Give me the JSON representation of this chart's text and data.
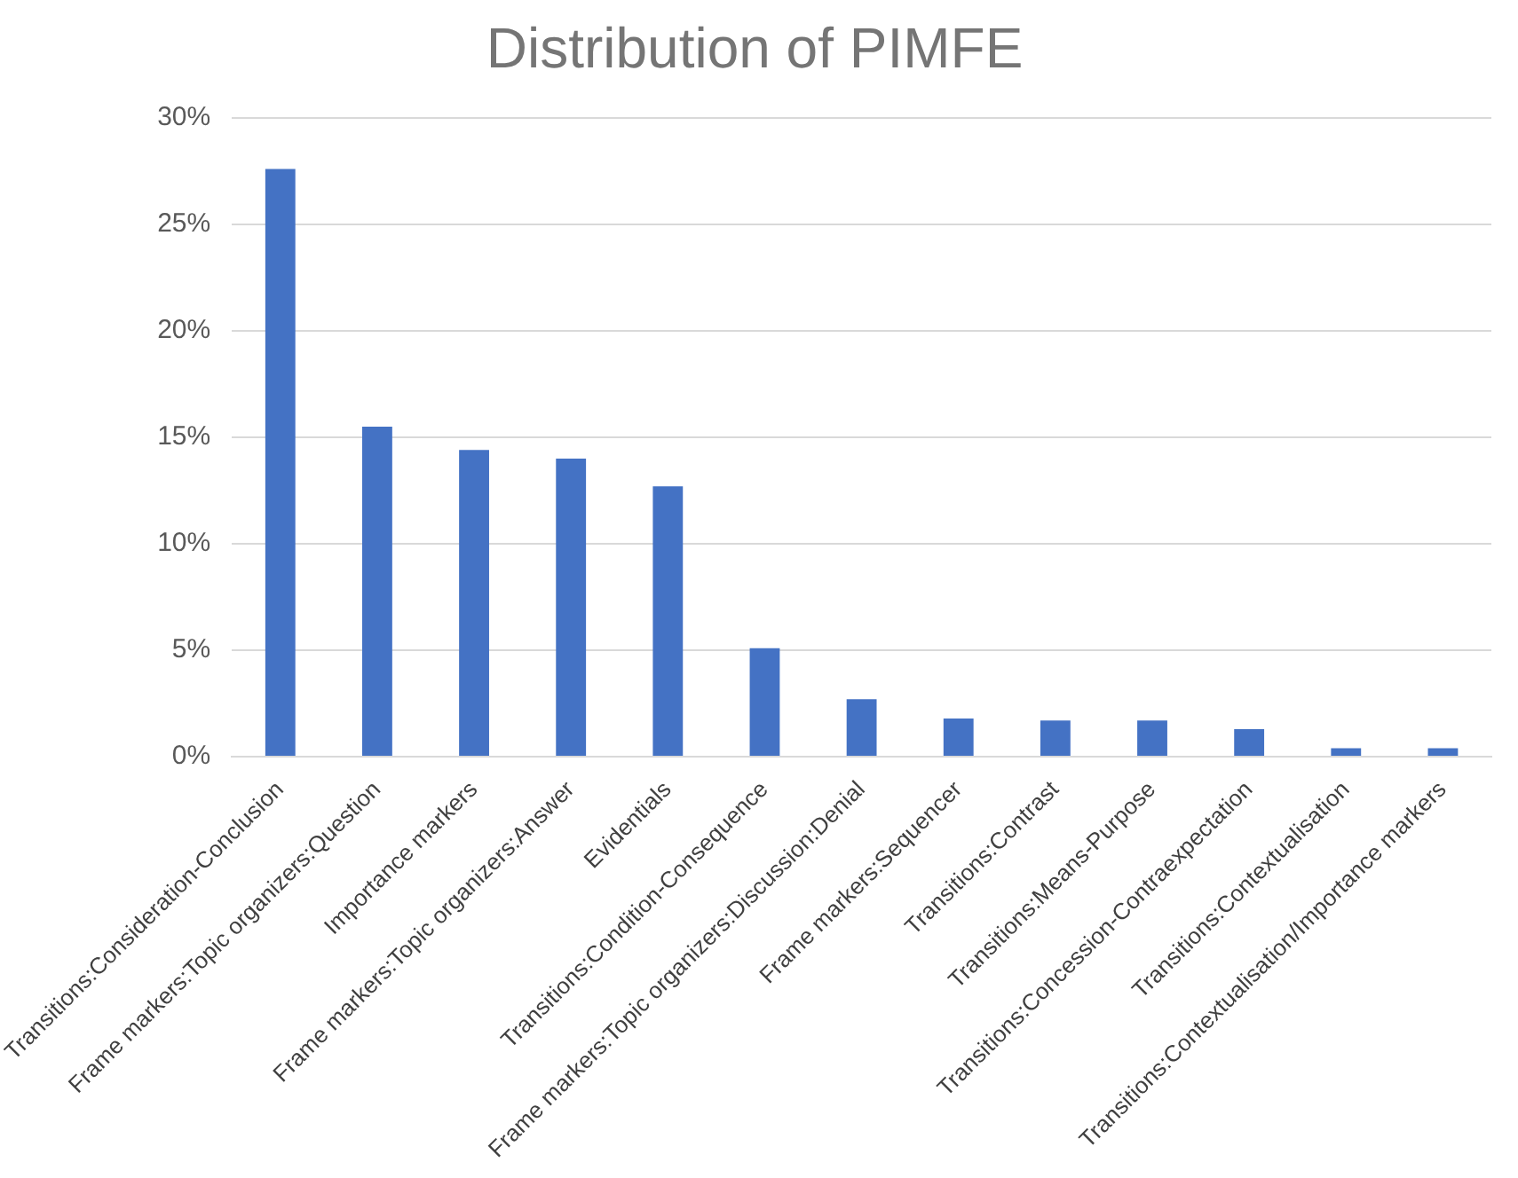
{
  "chart_data": {
    "type": "bar",
    "title": "Distribution of PIMFE",
    "categories": [
      "Transitions:Consideration-Conclusion",
      "Frame markers:Topic organizers:Question",
      "Importance markers",
      "Frame markers:Topic organizers:Answer",
      "Evidentials",
      "Transitions:Condition-Consequence",
      "Frame markers:Topic organizers:Discussion:Denial",
      "Frame markers:Sequencer",
      "Transitions:Contrast",
      "Transitions:Means-Purpose",
      "Transitions:Concession-Contraexpectation",
      "Transitions:Contextualisation",
      "Transitions:Contextualisation/Importance markers"
    ],
    "values": [
      27.6,
      15.5,
      14.4,
      14.0,
      12.7,
      5.1,
      2.7,
      1.8,
      1.7,
      1.7,
      1.3,
      0.4,
      0.4
    ],
    "color": "#4472c4",
    "ylim": [
      0,
      30
    ],
    "yticks": [
      {
        "value": 0,
        "label": "0%"
      },
      {
        "value": 5,
        "label": "5%"
      },
      {
        "value": 10,
        "label": "10%"
      },
      {
        "value": 15,
        "label": "15%"
      },
      {
        "value": 20,
        "label": "20%"
      },
      {
        "value": 25,
        "label": "25%"
      },
      {
        "value": 30,
        "label": "30%"
      }
    ],
    "grid": "y"
  }
}
